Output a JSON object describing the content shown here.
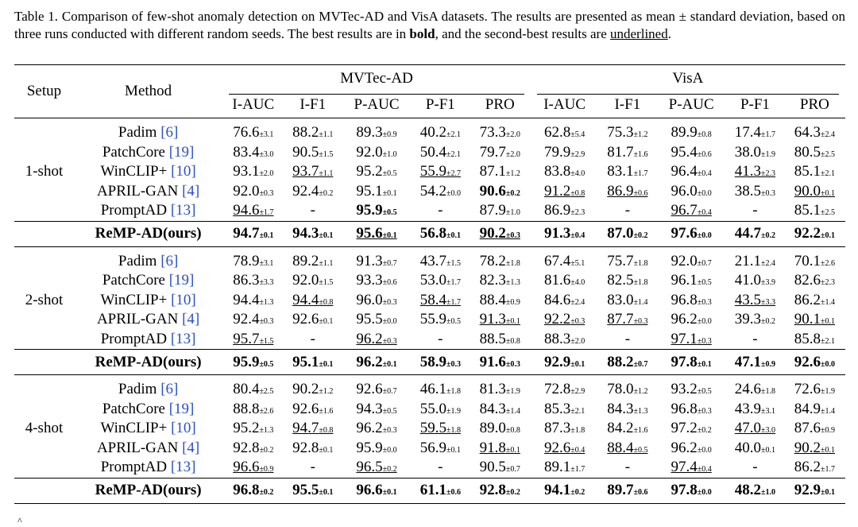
{
  "caption": {
    "part1": "Table 1. Comparison of few-shot anomaly detection on MVTec-AD and VisA datasets. The results are presented as mean ± standard deviation, based on three runs conducted with different random seeds. The best results are in ",
    "bold_word": "bold",
    "part2": ", and the second-best results are ",
    "underlined_word": "underlined",
    "part3": "."
  },
  "headers": {
    "setup": "Setup",
    "method": "Method",
    "dataset1": "MVTec-AD",
    "dataset2": "VisA",
    "metrics": [
      "I-AUC",
      "I-F1",
      "P-AUC",
      "P-F1",
      "PRO",
      "I-AUC",
      "I-F1",
      "P-AUC",
      "P-F1",
      "PRO"
    ]
  },
  "groups": [
    {
      "setup": "1-shot",
      "rows": [
        {
          "method": "Padim",
          "cite": "[6]",
          "cells": [
            [
              "76.6",
              "±3.1",
              ""
            ],
            [
              "88.2",
              "±1.1",
              ""
            ],
            [
              "89.3",
              "±0.9",
              ""
            ],
            [
              "40.2",
              "±2.1",
              ""
            ],
            [
              "73.3",
              "±2.0",
              ""
            ],
            [
              "62.8",
              "±5.4",
              ""
            ],
            [
              "75.3",
              "±1.2",
              ""
            ],
            [
              "89.9",
              "±0.8",
              ""
            ],
            [
              "17.4",
              "±1.7",
              ""
            ],
            [
              "64.3",
              "±2.4",
              ""
            ]
          ]
        },
        {
          "method": "PatchCore",
          "cite": "[19]",
          "cells": [
            [
              "83.4",
              "±3.0",
              ""
            ],
            [
              "90.5",
              "±1.5",
              ""
            ],
            [
              "92.0",
              "±1.0",
              ""
            ],
            [
              "50.4",
              "±2.1",
              ""
            ],
            [
              "79.7",
              "±2.0",
              ""
            ],
            [
              "79.9",
              "±2.9",
              ""
            ],
            [
              "81.7",
              "±1.6",
              ""
            ],
            [
              "95.4",
              "±0.6",
              ""
            ],
            [
              "38.0",
              "±1.9",
              ""
            ],
            [
              "80.5",
              "±2.5",
              ""
            ]
          ]
        },
        {
          "method": "WinCLIP+",
          "cite": "[10]",
          "cells": [
            [
              "93.1",
              "±2.0",
              ""
            ],
            [
              "93.7",
              "±1.1",
              "u"
            ],
            [
              "95.2",
              "±0.5",
              ""
            ],
            [
              "55.9",
              "±2.7",
              "u"
            ],
            [
              "87.1",
              "±1.2",
              ""
            ],
            [
              "83.8",
              "±4.0",
              ""
            ],
            [
              "83.1",
              "±1.7",
              ""
            ],
            [
              "96.4",
              "±0.4",
              ""
            ],
            [
              "41.3",
              "±2.3",
              "u"
            ],
            [
              "85.1",
              "±2.1",
              ""
            ]
          ]
        },
        {
          "method": "APRIL-GAN",
          "cite": "[4]",
          "cells": [
            [
              "92.0",
              "±0.3",
              ""
            ],
            [
              "92.4",
              "±0.2",
              ""
            ],
            [
              "95.1",
              "±0.1",
              ""
            ],
            [
              "54.2",
              "±0.0",
              ""
            ],
            [
              "90.6",
              "±0.2",
              "b"
            ],
            [
              "91.2",
              "±0.8",
              "u"
            ],
            [
              "86.9",
              "±0.6",
              "u"
            ],
            [
              "96.0",
              "±0.0",
              ""
            ],
            [
              "38.5",
              "±0.3",
              ""
            ],
            [
              "90.0",
              "±0.1",
              "u"
            ]
          ]
        },
        {
          "method": "PromptAD",
          "cite": "[13]",
          "cells": [
            [
              "94.6",
              "±1.7",
              "u"
            ],
            [
              "-",
              "",
              ""
            ],
            [
              "95.9",
              "±0.5",
              "b"
            ],
            [
              "-",
              "",
              ""
            ],
            [
              "87.9",
              "±1.0",
              ""
            ],
            [
              "86.9",
              "±2.3",
              ""
            ],
            [
              "-",
              "",
              ""
            ],
            [
              "96.7",
              "±0.4",
              "u"
            ],
            [
              "-",
              "",
              ""
            ],
            [
              "85.1",
              "±2.5",
              ""
            ]
          ]
        }
      ],
      "ours": {
        "method": "ReMP-AD(ours)",
        "cells": [
          [
            "94.7",
            "±0.1",
            "b"
          ],
          [
            "94.3",
            "±0.1",
            "b"
          ],
          [
            "95.6",
            "±0.1",
            "u"
          ],
          [
            "56.8",
            "±0.1",
            "b"
          ],
          [
            "90.2",
            "±0.3",
            "u"
          ],
          [
            "91.3",
            "±0.4",
            "b"
          ],
          [
            "87.0",
            "±0.2",
            "b"
          ],
          [
            "97.6",
            "±0.0",
            "b"
          ],
          [
            "44.7",
            "±0.2",
            "b"
          ],
          [
            "92.2",
            "±0.1",
            "b"
          ]
        ]
      }
    },
    {
      "setup": "2-shot",
      "rows": [
        {
          "method": "Padim",
          "cite": "[6]",
          "cells": [
            [
              "78.9",
              "±3.1",
              ""
            ],
            [
              "89.2",
              "±1.1",
              ""
            ],
            [
              "91.3",
              "±0.7",
              ""
            ],
            [
              "43.7",
              "±1.5",
              ""
            ],
            [
              "78.2",
              "±1.8",
              ""
            ],
            [
              "67.4",
              "±5.1",
              ""
            ],
            [
              "75.7",
              "±1.8",
              ""
            ],
            [
              "92.0",
              "±0.7",
              ""
            ],
            [
              "21.1",
              "±2.4",
              ""
            ],
            [
              "70.1",
              "±2.6",
              ""
            ]
          ]
        },
        {
          "method": "PatchCore",
          "cite": "[19]",
          "cells": [
            [
              "86.3",
              "±3.3",
              ""
            ],
            [
              "92.0",
              "±1.5",
              ""
            ],
            [
              "93.3",
              "±0.6",
              ""
            ],
            [
              "53.0",
              "±1.7",
              ""
            ],
            [
              "82.3",
              "±1.3",
              ""
            ],
            [
              "81.6",
              "±4.0",
              ""
            ],
            [
              "82.5",
              "±1.8",
              ""
            ],
            [
              "96.1",
              "±0.5",
              ""
            ],
            [
              "41.0",
              "±3.9",
              ""
            ],
            [
              "82.6",
              "±2.3",
              ""
            ]
          ]
        },
        {
          "method": "WinCLIP+",
          "cite": "[10]",
          "cells": [
            [
              "94.4",
              "±1.3",
              ""
            ],
            [
              "94.4",
              "±0.8",
              "u"
            ],
            [
              "96.0",
              "±0.3",
              ""
            ],
            [
              "58.4",
              "±1.7",
              "u"
            ],
            [
              "88.4",
              "±0.9",
              ""
            ],
            [
              "84.6",
              "±2.4",
              ""
            ],
            [
              "83.0",
              "±1.4",
              ""
            ],
            [
              "96.8",
              "±0.3",
              ""
            ],
            [
              "43.5",
              "±3.3",
              "u"
            ],
            [
              "86.2",
              "±1.4",
              ""
            ]
          ]
        },
        {
          "method": "APRIL-GAN",
          "cite": "[4]",
          "cells": [
            [
              "92.4",
              "±0.3",
              ""
            ],
            [
              "92.6",
              "±0.1",
              ""
            ],
            [
              "95.5",
              "±0.0",
              ""
            ],
            [
              "55.9",
              "±0.5",
              ""
            ],
            [
              "91.3",
              "±0.1",
              "u"
            ],
            [
              "92.2",
              "±0.3",
              "u"
            ],
            [
              "87.7",
              "±0.3",
              "u"
            ],
            [
              "96.2",
              "±0.0",
              ""
            ],
            [
              "39.3",
              "±0.2",
              ""
            ],
            [
              "90.1",
              "±0.1",
              "u"
            ]
          ]
        },
        {
          "method": "PromptAD",
          "cite": "[13]",
          "cells": [
            [
              "95.7",
              "±1.5",
              "u"
            ],
            [
              "-",
              "",
              ""
            ],
            [
              "96.2",
              "±0.3",
              "u"
            ],
            [
              "-",
              "",
              ""
            ],
            [
              "88.5",
              "±0.8",
              ""
            ],
            [
              "88.3",
              "±2.0",
              ""
            ],
            [
              "-",
              "",
              ""
            ],
            [
              "97.1",
              "±0.3",
              "u"
            ],
            [
              "-",
              "",
              ""
            ],
            [
              "85.8",
              "±2.1",
              ""
            ]
          ]
        }
      ],
      "ours": {
        "method": "ReMP-AD(ours)",
        "cells": [
          [
            "95.9",
            "±0.5",
            "b"
          ],
          [
            "95.1",
            "±0.1",
            "b"
          ],
          [
            "96.2",
            "±0.1",
            "b"
          ],
          [
            "58.9",
            "±0.3",
            "b"
          ],
          [
            "91.6",
            "±0.3",
            "b"
          ],
          [
            "92.9",
            "±0.1",
            "b"
          ],
          [
            "88.2",
            "±0.7",
            "b"
          ],
          [
            "97.8",
            "±0.1",
            "b"
          ],
          [
            "47.1",
            "±0.9",
            "b"
          ],
          [
            "92.6",
            "±0.0",
            "b"
          ]
        ]
      }
    },
    {
      "setup": "4-shot",
      "rows": [
        {
          "method": "Padim",
          "cite": "[6]",
          "cells": [
            [
              "80.4",
              "±2.5",
              ""
            ],
            [
              "90.2",
              "±1.2",
              ""
            ],
            [
              "92.6",
              "±0.7",
              ""
            ],
            [
              "46.1",
              "±1.8",
              ""
            ],
            [
              "81.3",
              "±1.9",
              ""
            ],
            [
              "72.8",
              "±2.9",
              ""
            ],
            [
              "78.0",
              "±1.2",
              ""
            ],
            [
              "93.2",
              "±0.5",
              ""
            ],
            [
              "24.6",
              "±1.8",
              ""
            ],
            [
              "72.6",
              "±1.9",
              ""
            ]
          ]
        },
        {
          "method": "PatchCore",
          "cite": "[19]",
          "cells": [
            [
              "88.8",
              "±2.6",
              ""
            ],
            [
              "92.6",
              "±1.6",
              ""
            ],
            [
              "94.3",
              "±0.5",
              ""
            ],
            [
              "55.0",
              "±1.9",
              ""
            ],
            [
              "84.3",
              "±1.4",
              ""
            ],
            [
              "85.3",
              "±2.1",
              ""
            ],
            [
              "84.3",
              "±1.3",
              ""
            ],
            [
              "96.8",
              "±0.3",
              ""
            ],
            [
              "43.9",
              "±3.1",
              ""
            ],
            [
              "84.9",
              "±1.4",
              ""
            ]
          ]
        },
        {
          "method": "WinCLIP+",
          "cite": "[10]",
          "cells": [
            [
              "95.2",
              "±1.3",
              ""
            ],
            [
              "94.7",
              "±0.8",
              "u"
            ],
            [
              "96.2",
              "±0.3",
              ""
            ],
            [
              "59.5",
              "±1.8",
              "u"
            ],
            [
              "89.0",
              "±0.8",
              ""
            ],
            [
              "87.3",
              "±1.8",
              ""
            ],
            [
              "84.2",
              "±1.6",
              ""
            ],
            [
              "97.2",
              "±0.2",
              ""
            ],
            [
              "47.0",
              "±3.0",
              "u"
            ],
            [
              "87.6",
              "±0.9",
              ""
            ]
          ]
        },
        {
          "method": "APRIL-GAN",
          "cite": "[4]",
          "cells": [
            [
              "92.8",
              "±0.2",
              ""
            ],
            [
              "92.8",
              "±0.1",
              ""
            ],
            [
              "95.9",
              "±0.0",
              ""
            ],
            [
              "56.9",
              "±0.1",
              ""
            ],
            [
              "91.8",
              "±0.1",
              "u"
            ],
            [
              "92.6",
              "±0.4",
              "u"
            ],
            [
              "88.4",
              "±0.5",
              "u"
            ],
            [
              "96.2",
              "±0.0",
              ""
            ],
            [
              "40.0",
              "±0.1",
              ""
            ],
            [
              "90.2",
              "±0.1",
              "u"
            ]
          ]
        },
        {
          "method": "PromptAD",
          "cite": "[13]",
          "cells": [
            [
              "96.6",
              "±0.9",
              "u"
            ],
            [
              "-",
              "",
              ""
            ],
            [
              "96.5",
              "±0.2",
              "u"
            ],
            [
              "-",
              "",
              ""
            ],
            [
              "90.5",
              "±0.7",
              ""
            ],
            [
              "89.1",
              "±1.7",
              ""
            ],
            [
              "-",
              "",
              ""
            ],
            [
              "97.4",
              "±0.4",
              "u"
            ],
            [
              "-",
              "",
              ""
            ],
            [
              "86.2",
              "±1.7",
              ""
            ]
          ]
        }
      ],
      "ours": {
        "method": "ReMP-AD(ours)",
        "cells": [
          [
            "96.8",
            "±0.2",
            "b"
          ],
          [
            "95.5",
            "±0.1",
            "b"
          ],
          [
            "96.6",
            "±0.1",
            "b"
          ],
          [
            "61.1",
            "±0.6",
            "b"
          ],
          [
            "92.8",
            "±0.2",
            "b"
          ],
          [
            "94.1",
            "±0.2",
            "b"
          ],
          [
            "89.7",
            "±0.6",
            "b"
          ],
          [
            "97.8",
            "±0.0",
            "b"
          ],
          [
            "48.2",
            "±1.0",
            "b"
          ],
          [
            "92.9",
            "±0.1",
            "b"
          ]
        ]
      }
    }
  ],
  "footnote": "^"
}
